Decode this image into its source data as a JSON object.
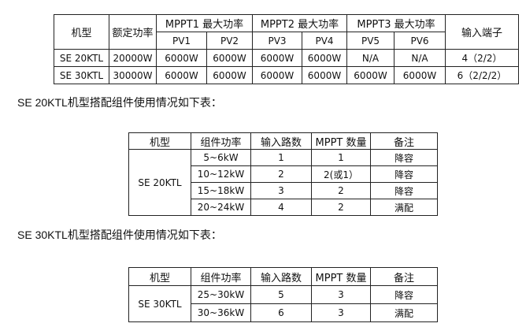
{
  "table1": {
    "headers": {
      "model": "机型",
      "rated": "额定功率",
      "mppt1": "MPPT1 最大功率",
      "mppt2": "MPPT2 最大功率",
      "mppt3": "MPPT3 最大功率",
      "terminals": "输入端子",
      "pv": [
        "PV1",
        "PV2",
        "PV3",
        "PV4",
        "PV5",
        "PV6"
      ]
    },
    "rows": [
      [
        "SE 20KTL",
        "20000W",
        "6000W",
        "6000W",
        "6000W",
        "6000W",
        "N/A",
        "N/A",
        "4（2/2）"
      ],
      [
        "SE 30KTL",
        "30000W",
        "6000W",
        "6000W",
        "6000W",
        "6000W",
        "6000W",
        "6000W",
        "6（2/2/2）"
      ]
    ]
  },
  "text1": "SE 20KTL机型搭配组件使用情况如下表：",
  "table2": {
    "headers": [
      "机型",
      "组件功率",
      "输入路数",
      "MPPT 数量",
      "备注"
    ],
    "model": "SE 20KTL",
    "rows": [
      [
        "5~6kW",
        "1",
        "1",
        "降容"
      ],
      [
        "10~12kW",
        "2",
        "2(或1）",
        "降容"
      ],
      [
        "15~18kW",
        "3",
        "2",
        "降容"
      ],
      [
        "20~24kW",
        "4",
        "2",
        "满配"
      ]
    ]
  },
  "text2": "SE 30KTL机型搭配组件使用情况如下表：",
  "table3": {
    "headers": [
      "机型",
      "组件功率",
      "输入路数",
      "MPPT 数量",
      "备注"
    ],
    "model": "SE 30KTL",
    "rows": [
      [
        "25~30kW",
        "5",
        "3",
        "降容"
      ],
      [
        "30~36kW",
        "6",
        "3",
        "满配"
      ]
    ]
  }
}
